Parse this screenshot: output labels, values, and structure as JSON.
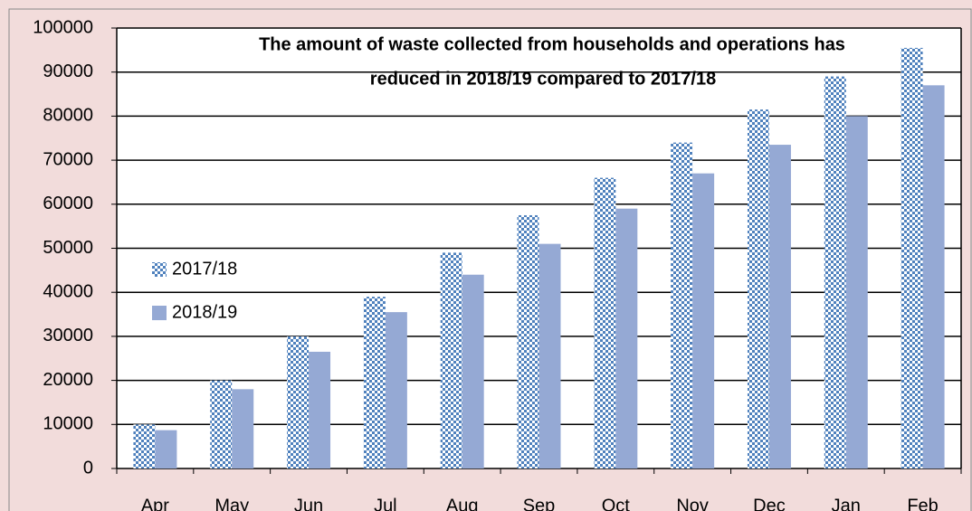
{
  "chart_data": {
    "type": "bar",
    "title": [
      "The amount of waste collected from households and operations has",
      "reduced in 2018/19 compared to 2017/18"
    ],
    "categories": [
      "Apr",
      "May",
      "Jun",
      "Jul",
      "Aug",
      "Sep",
      "Oct",
      "Nov",
      "Dec",
      "Jan",
      "Feb"
    ],
    "series": [
      {
        "name": "2017/18",
        "color": "#4f81bd",
        "pattern": "checker",
        "values": [
          10000,
          20000,
          30000,
          39000,
          49000,
          57500,
          66000,
          74000,
          81500,
          89000,
          95500
        ]
      },
      {
        "name": "2018/19",
        "color": "#95a9d4",
        "values": [
          8700,
          18000,
          26500,
          35500,
          44000,
          51000,
          59000,
          67000,
          73500,
          80000,
          87000
        ]
      }
    ],
    "ylim": [
      0,
      100000
    ],
    "yticks": [
      0,
      10000,
      20000,
      30000,
      40000,
      50000,
      60000,
      70000,
      80000,
      90000,
      100000
    ],
    "grid": true,
    "legend": "left"
  }
}
